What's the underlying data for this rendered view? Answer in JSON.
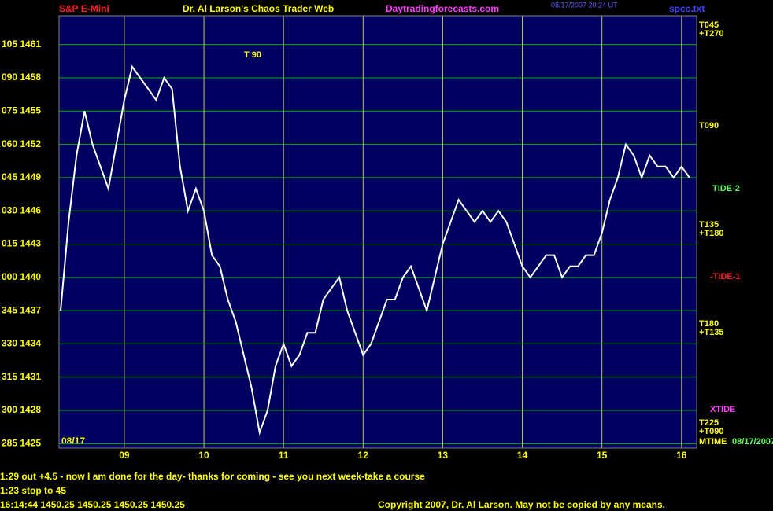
{
  "chart_data": {
    "type": "line",
    "title": "Dr. Al Larson's Chaos Trader Web",
    "instrument": "S&P E-Mini",
    "site": "Daytradingforecasts.com",
    "timestamp": "08/17/2007 20:24 UT",
    "file": "spcc.txt",
    "date_label": "08/17",
    "xlim": [
      8.18,
      16.19
    ],
    "xticks": [
      {
        "value": 9,
        "label": "09"
      },
      10,
      11,
      12,
      13,
      14,
      15,
      16
    ],
    "ylim": [
      1424.6,
      1463.6
    ],
    "yticks": [
      {
        "value": 1461,
        "label": "105 1461"
      },
      {
        "value": 1458,
        "label": "090 1458"
      },
      {
        "value": 1455,
        "label": "075 1455"
      },
      {
        "value": 1452,
        "label": "060 1452"
      },
      {
        "value": 1449,
        "label": "045 1449"
      },
      {
        "value": 1446,
        "label": "030 1446"
      },
      {
        "value": 1443,
        "label": "015 1443"
      },
      {
        "value": 1440,
        "label": "000 1440"
      },
      {
        "value": 1437,
        "label": "345 1437"
      },
      {
        "value": 1434,
        "label": "330 1434"
      },
      {
        "value": 1431,
        "label": "315 1431"
      },
      {
        "value": 1428,
        "label": "300 1428"
      },
      {
        "value": 1425,
        "label": "285 1425"
      }
    ],
    "grid": true,
    "x": [
      8.2,
      8.3,
      8.4,
      8.5,
      8.6,
      8.7,
      8.8,
      8.9,
      9.0,
      9.1,
      9.2,
      9.3,
      9.4,
      9.5,
      9.6,
      9.7,
      9.8,
      9.9,
      10.0,
      10.1,
      10.2,
      10.3,
      10.4,
      10.5,
      10.6,
      10.7,
      10.8,
      10.9,
      11.0,
      11.1,
      11.2,
      11.3,
      11.4,
      11.5,
      11.6,
      11.7,
      11.8,
      11.9,
      12.0,
      12.1,
      12.2,
      12.3,
      12.4,
      12.5,
      12.6,
      12.7,
      12.8,
      12.9,
      13.0,
      13.1,
      13.2,
      13.3,
      13.4,
      13.5,
      13.6,
      13.7,
      13.8,
      13.9,
      14.0,
      14.1,
      14.2,
      14.3,
      14.4,
      14.5,
      14.6,
      14.7,
      14.8,
      14.9,
      15.0,
      15.1,
      15.2,
      15.3,
      15.4,
      15.5,
      15.6,
      15.7,
      15.8,
      15.9,
      16.0,
      16.1
    ],
    "series": [
      {
        "name": "Price",
        "color": "#ffffff",
        "values": [
          1437,
          1445,
          1451,
          1455,
          1452,
          1450,
          1448,
          1452,
          1456,
          1459,
          1458,
          1457,
          1456,
          1458,
          1457,
          1450,
          1446,
          1448,
          1446,
          1442,
          1441,
          1438,
          1436,
          1433,
          1430,
          1426,
          1428,
          1432,
          1434,
          1432,
          1433,
          1435,
          1435,
          1438,
          1439,
          1440,
          1437,
          1435,
          1433,
          1434,
          1436,
          1438,
          1438,
          1440,
          1441,
          1439,
          1437,
          1440,
          1443,
          1445,
          1447,
          1446,
          1445,
          1446,
          1445,
          1446,
          1445,
          1443,
          1441,
          1440,
          1441,
          1442,
          1442,
          1440,
          1441,
          1441,
          1442,
          1442,
          1444,
          1447,
          1449,
          1452,
          1451,
          1449,
          1451,
          1450,
          1450,
          1449,
          1450,
          1449
        ]
      }
    ],
    "annotations": [
      "T 90",
      "T045",
      "+T270",
      "T090",
      "T135",
      "+T180",
      "-TIDE-1",
      "T180",
      "+T135",
      "XTIDE",
      "T225",
      "+T090",
      "TIDE-2",
      "08/17/2007",
      "MTIME"
    ],
    "status_lines": [
      "1:29 out +4.5 - now I am done for the day- thanks for coming - see you next week-take a course",
      "1:23 stop to 45",
      "16:14:44  1450.25 1450.25 1450.25 1450.25"
    ],
    "copyright": "Copyright 2007, Dr. Al Larson. May not be copied by any means."
  }
}
